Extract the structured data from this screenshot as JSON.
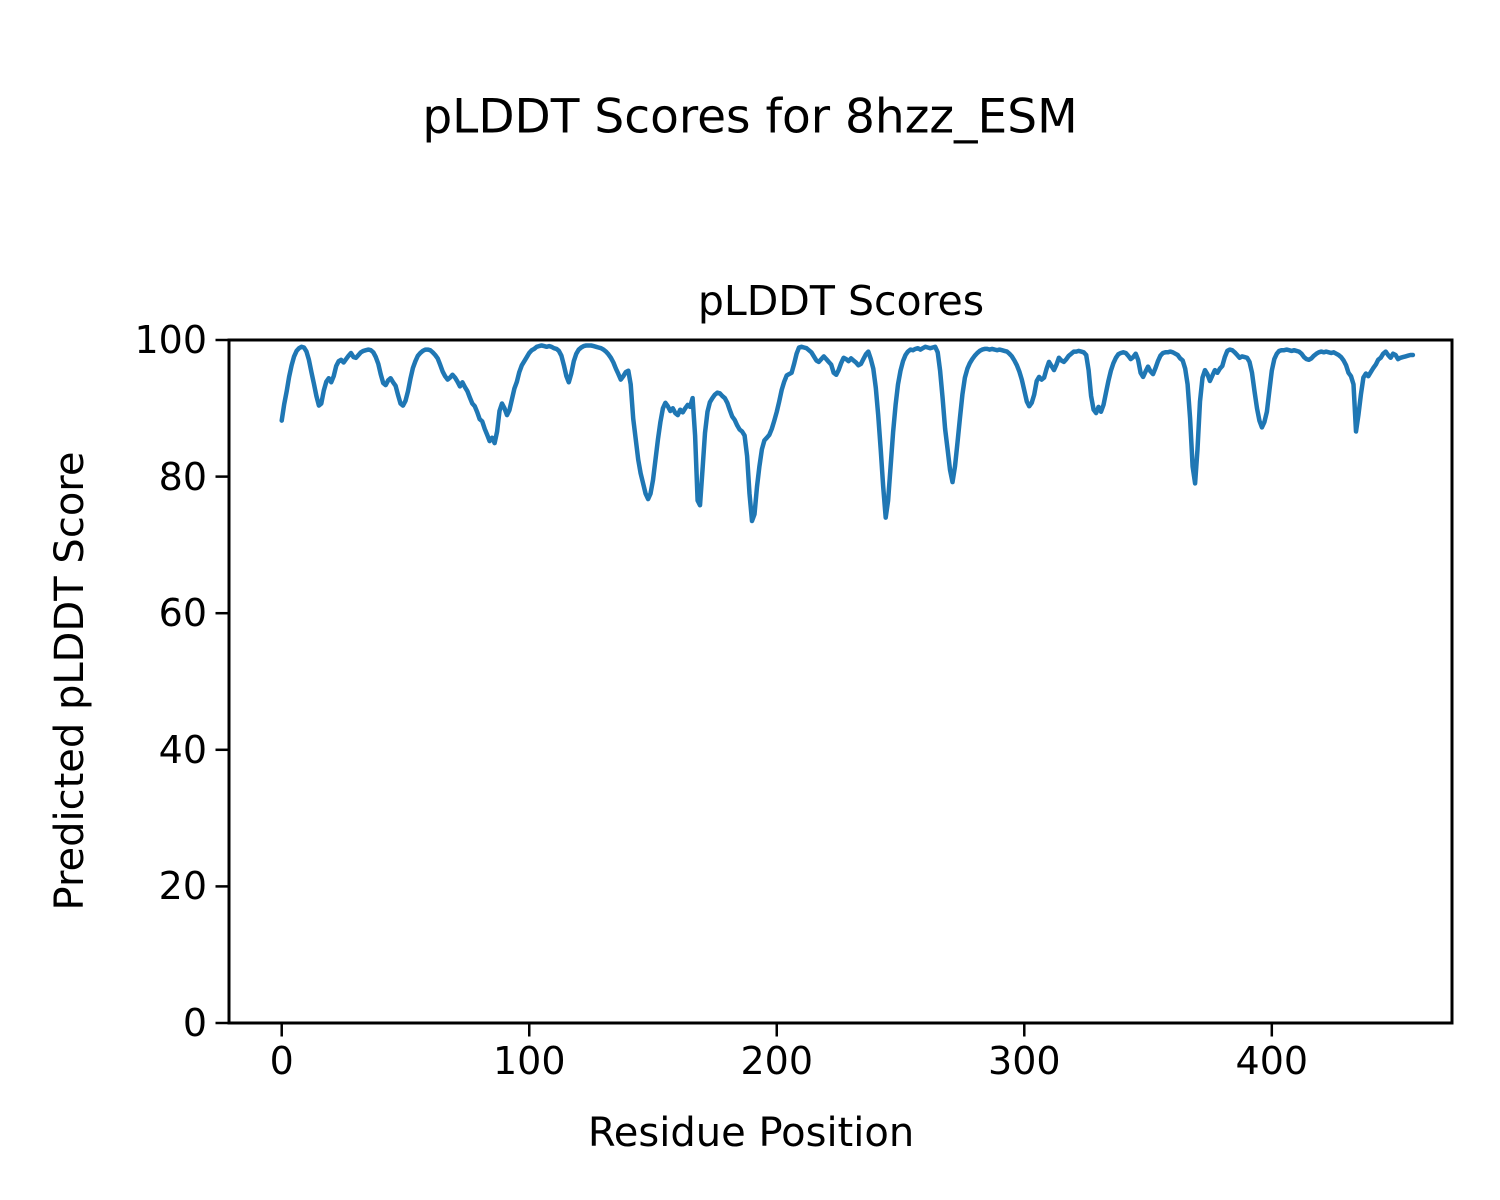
{
  "figure": {
    "suptitle": "pLDDT Scores for 8hzz_ESM",
    "background_color": "#ffffff"
  },
  "chart_data": {
    "type": "line",
    "title": "pLDDT Scores",
    "xlabel": "Residue Position",
    "ylabel": "Predicted pLDDT Score",
    "xlim": [
      -21.3,
      472.8
    ],
    "ylim": [
      0,
      100
    ],
    "xticks": [
      0,
      100,
      200,
      300,
      400
    ],
    "yticks": [
      0,
      20,
      40,
      60,
      80,
      100
    ],
    "grid": false,
    "legend": "none",
    "line_color": "#1f77b4",
    "axis_color": "#000000",
    "series": [
      {
        "name": "pLDDT",
        "x_start": 0,
        "x_step": 1,
        "values": [
          88.2,
          90.6,
          92.5,
          94.6,
          96.3,
          97.6,
          98.4,
          98.8,
          99.0,
          98.9,
          98.3,
          97.1,
          95.3,
          93.6,
          91.8,
          90.4,
          90.7,
          92.6,
          93.9,
          94.4,
          93.8,
          94.7,
          96.2,
          96.9,
          97.1,
          96.7,
          97.2,
          97.7,
          98.1,
          97.5,
          97.4,
          97.8,
          98.2,
          98.4,
          98.5,
          98.6,
          98.5,
          98.2,
          97.5,
          96.5,
          95.0,
          93.7,
          93.4,
          94.1,
          94.4,
          93.8,
          93.3,
          91.9,
          90.7,
          90.4,
          91.1,
          92.5,
          94.3,
          95.9,
          96.9,
          97.7,
          98.1,
          98.4,
          98.6,
          98.6,
          98.5,
          98.2,
          97.8,
          97.3,
          96.4,
          95.4,
          94.7,
          94.2,
          94.5,
          94.9,
          94.5,
          93.9,
          93.2,
          93.8,
          93.1,
          92.5,
          91.6,
          90.7,
          90.3,
          89.4,
          88.4,
          88.1,
          87.0,
          86.1,
          85.2,
          85.7,
          84.9,
          86.6,
          89.6,
          90.7,
          90.0,
          89.0,
          89.7,
          91.3,
          92.9,
          93.9,
          95.3,
          96.3,
          96.9,
          97.5,
          98.1,
          98.5,
          98.7,
          99.0,
          99.1,
          99.2,
          99.1,
          99.0,
          99.1,
          99.0,
          98.8,
          98.7,
          98.4,
          97.7,
          96.3,
          94.7,
          93.8,
          95.1,
          96.9,
          98.0,
          98.6,
          98.9,
          99.1,
          99.2,
          99.2,
          99.2,
          99.1,
          99.0,
          98.9,
          98.8,
          98.6,
          98.3,
          97.9,
          97.4,
          96.7,
          95.8,
          95.0,
          94.2,
          94.7,
          95.3,
          95.5,
          93.5,
          88.5,
          85.5,
          82.5,
          80.5,
          79.0,
          77.5,
          76.7,
          77.5,
          79.5,
          82.5,
          85.5,
          88.0,
          90.0,
          90.8,
          90.3,
          89.6,
          90.0,
          89.3,
          89.0,
          89.8,
          89.4,
          90.0,
          90.5,
          90.2,
          91.5,
          86.0,
          76.5,
          75.8,
          81.0,
          86.4,
          89.5,
          90.9,
          91.5,
          92.0,
          92.3,
          92.2,
          91.8,
          91.5,
          90.8,
          89.8,
          88.8,
          88.3,
          87.5,
          86.9,
          86.6,
          86.0,
          83.0,
          77.5,
          73.5,
          74.5,
          78.5,
          81.5,
          84.0,
          85.3,
          85.7,
          86.1,
          87.0,
          88.2,
          89.5,
          91.0,
          92.7,
          93.9,
          94.8,
          95.0,
          95.2,
          96.5,
          98.0,
          98.9,
          99.0,
          98.9,
          98.8,
          98.5,
          98.2,
          97.6,
          97.0,
          96.8,
          97.2,
          97.6,
          97.2,
          96.8,
          96.4,
          95.2,
          94.9,
          95.6,
          96.6,
          97.4,
          97.2,
          96.9,
          97.3,
          97.0,
          96.7,
          96.3,
          96.5,
          97.2,
          97.9,
          98.3,
          97.2,
          95.8,
          93.0,
          89.0,
          84.0,
          78.5,
          74.0,
          76.5,
          81.5,
          86.5,
          90.5,
          93.5,
          95.5,
          96.9,
          97.8,
          98.3,
          98.6,
          98.5,
          98.7,
          98.8,
          98.6,
          98.8,
          99.0,
          98.9,
          98.8,
          98.9,
          99.0,
          98.2,
          95.5,
          91.5,
          87.0,
          84.0,
          81.0,
          79.2,
          81.5,
          85.0,
          88.5,
          92.0,
          94.5,
          95.8,
          96.6,
          97.2,
          97.7,
          98.1,
          98.4,
          98.6,
          98.7,
          98.7,
          98.6,
          98.7,
          98.6,
          98.5,
          98.6,
          98.5,
          98.4,
          98.3,
          98.0,
          97.6,
          97.0,
          96.3,
          95.4,
          94.2,
          92.6,
          91.0,
          90.3,
          90.8,
          92.0,
          94.0,
          94.6,
          94.2,
          94.5,
          95.8,
          96.8,
          96.2,
          95.6,
          96.4,
          97.4,
          97.0,
          96.8,
          97.2,
          97.7,
          98.0,
          98.3,
          98.3,
          98.4,
          98.3,
          98.2,
          97.8,
          95.6,
          91.8,
          89.8,
          89.3,
          90.2,
          89.5,
          90.5,
          92.3,
          94.0,
          95.5,
          96.6,
          97.4,
          97.9,
          98.1,
          98.2,
          98.1,
          97.7,
          97.2,
          97.5,
          98.0,
          97.1,
          95.2,
          94.6,
          95.4,
          96.1,
          95.4,
          95.0,
          95.9,
          96.9,
          97.7,
          98.1,
          98.2,
          98.2,
          98.3,
          98.2,
          98.0,
          97.8,
          97.3,
          97.0,
          95.8,
          93.5,
          88.5,
          81.5,
          79.0,
          84.0,
          91.0,
          94.5,
          95.6,
          95.0,
          94.0,
          94.8,
          95.6,
          95.2,
          95.8,
          96.2,
          97.5,
          98.4,
          98.6,
          98.5,
          98.2,
          97.8,
          97.4,
          97.6,
          97.5,
          97.4,
          96.8,
          95.2,
          92.5,
          90.0,
          88.2,
          87.2,
          88.0,
          89.5,
          92.5,
          95.5,
          97.2,
          98.0,
          98.4,
          98.5,
          98.5,
          98.6,
          98.5,
          98.4,
          98.5,
          98.4,
          98.3,
          98.0,
          97.5,
          97.2,
          97.1,
          97.3,
          97.7,
          98.0,
          98.2,
          98.3,
          98.2,
          98.3,
          98.2,
          98.1,
          98.2,
          98.0,
          97.8,
          97.5,
          97.0,
          96.3,
          95.2,
          94.7,
          93.5,
          86.6,
          89.0,
          92.0,
          94.5,
          95.1,
          94.7,
          95.3,
          95.9,
          96.4,
          97.1,
          97.4,
          98.0,
          98.3,
          97.8,
          97.4,
          98.0,
          97.8,
          97.2,
          97.4,
          97.5,
          97.6,
          97.7,
          97.8,
          97.8
        ]
      }
    ]
  }
}
